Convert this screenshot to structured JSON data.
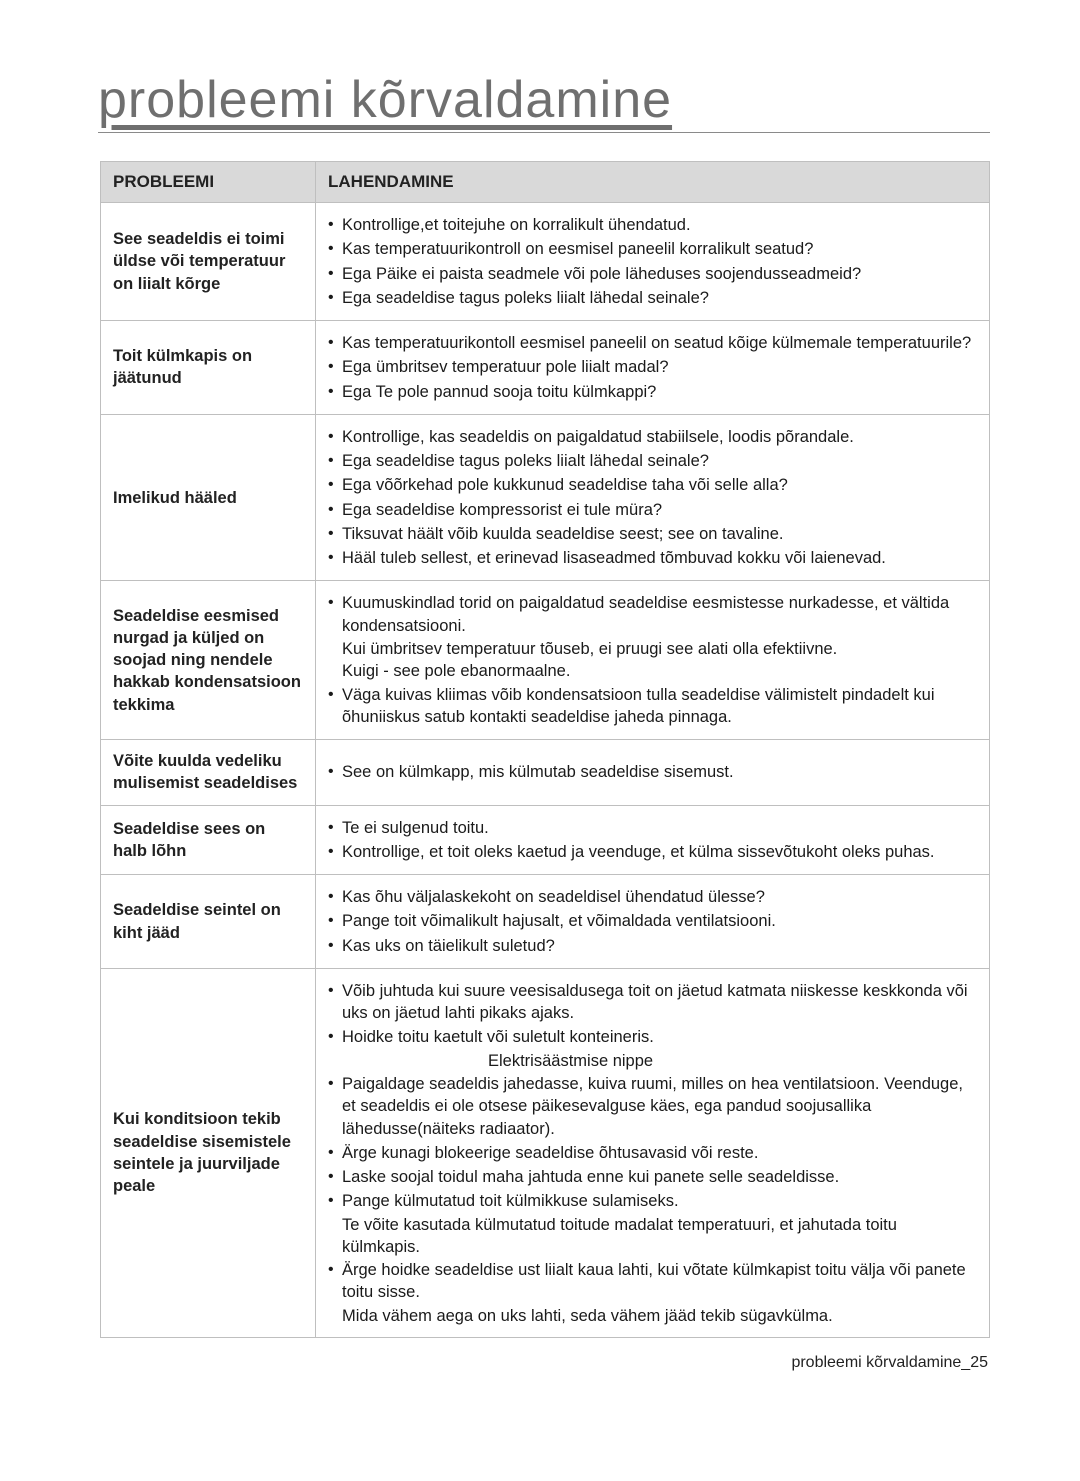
{
  "page": {
    "title": "probleemi kõrvaldamine",
    "footer": "probleemi kõrvaldamine_25",
    "headers": {
      "left": "PROBLEEMI",
      "right": "LAHENDAMINE"
    },
    "rows": [
      {
        "problem": "See seadeldis ei toimi üldse või temperatuur on liialt kõrge",
        "items": [
          {
            "type": "bullet",
            "text": "Kontrollige,et toitejuhe on korralikult ühendatud."
          },
          {
            "type": "bullet",
            "text": "Kas temperatuurikontroll on eesmisel paneelil korralikult seatud?"
          },
          {
            "type": "bullet",
            "text": "Ega Päike ei paista seadmele või pole läheduses soojendusseadmeid?"
          },
          {
            "type": "bullet",
            "text": "Ega seadeldise tagus poleks liialt lähedal seinale?"
          }
        ]
      },
      {
        "problem": "Toit külmkapis on jäätunud",
        "items": [
          {
            "type": "bullet",
            "text": "Kas temperatuurikontoll eesmisel paneelil on seatud kõige külmemale temperatuurile?"
          },
          {
            "type": "bullet",
            "text": "Ega ümbritsev temperatuur pole liialt madal?"
          },
          {
            "type": "bullet",
            "text": "Ega Te pole pannud sooja toitu külmkappi?"
          }
        ]
      },
      {
        "problem": "Imelikud hääled",
        "items": [
          {
            "type": "bullet",
            "text": "Kontrollige, kas seadeldis on paigaldatud stabiilsele, loodis põrandale."
          },
          {
            "type": "bullet",
            "text": "Ega seadeldise tagus poleks liialt lähedal seinale?"
          },
          {
            "type": "bullet",
            "text": "Ega võõrkehad pole kukkunud seadeldise taha või selle alla?"
          },
          {
            "type": "bullet",
            "text": "Ega seadeldise kompressorist ei tule müra?"
          },
          {
            "type": "bullet",
            "text": "Tiksuvat häält võib kuulda seadeldise seest; see on tavaline."
          },
          {
            "type": "bullet",
            "text": "Hääl tuleb sellest, et erinevad lisaseadmed tõmbuvad kokku või laienevad."
          }
        ]
      },
      {
        "problem": "Seadeldise eesmised nurgad ja küljed on soojad ning nendele hakkab kondensatsioon tekkima",
        "items": [
          {
            "type": "bullet",
            "text": "Kuumuskindlad torid on paigaldatud seadeldise eesmistesse nurkadesse, et vältida kondensatsiooni."
          },
          {
            "type": "sub",
            "text": "Kui ümbritsev temperatuur tõuseb, ei pruugi see alati olla efektiivne."
          },
          {
            "type": "sub",
            "text": "Kuigi - see pole ebanormaalne."
          },
          {
            "type": "bullet",
            "text": "Väga kuivas kliimas võib kondensatsioon tulla seadeldise välimistelt pindadelt kui õhuniiskus satub kontakti seadeldise jaheda pinnaga."
          }
        ]
      },
      {
        "problem": "Võite kuulda vedeliku mulisemist seadeldises",
        "items": [
          {
            "type": "bullet",
            "text": "See on külmkapp, mis külmutab seadeldise sisemust."
          }
        ]
      },
      {
        "problem": "Seadeldise sees on halb lõhn",
        "items": [
          {
            "type": "bullet",
            "text": "Te ei sulgenud toitu."
          },
          {
            "type": "bullet",
            "text": "Kontrollige, et toit oleks kaetud ja veenduge, et külma sissevõtukoht oleks puhas."
          }
        ]
      },
      {
        "problem": "Seadeldise seintel on kiht jääd",
        "items": [
          {
            "type": "bullet",
            "text": "Kas õhu väljalaskekoht on seadeldisel ühendatud ülesse?"
          },
          {
            "type": "bullet",
            "text": "Pange toit võimalikult hajusalt, et võimaldada ventilatsiooni."
          },
          {
            "type": "bullet",
            "text": "Kas uks on täielikult suletud?"
          }
        ]
      },
      {
        "problem": "Kui konditsioon tekib seadeldise sisemistele seintele ja juurviljade peale",
        "items": [
          {
            "type": "bullet",
            "text": "Võib juhtuda kui suure veesisaldusega toit on jäetud katmata niiskesse keskkonda või uks on jäetud lahti pikaks ajaks."
          },
          {
            "type": "bullet",
            "text": "Hoidke toitu kaetult või suletult konteineris."
          },
          {
            "type": "center",
            "text": "Elektrisäästmise nippe"
          },
          {
            "type": "bullet",
            "text": "Paigaldage seadeldis jahedasse, kuiva ruumi, milles on hea ventilatsioon. Veenduge, et seadeldis ei ole otsese päikesevalguse käes, ega pandud soojusallika lähedusse(näiteks radiaator)."
          },
          {
            "type": "bullet",
            "text": "Ärge kunagi blokeerige seadeldise õhtusavasid või reste."
          },
          {
            "type": "bullet",
            "text": "Laske soojal toidul maha jahtuda enne kui panete selle seadeldisse."
          },
          {
            "type": "bullet",
            "text": "Pange külmutatud toit külmikkuse sulamiseks."
          },
          {
            "type": "sub",
            "text": "Te võite kasutada külmutatud toitude madalat temperatuuri, et jahutada toitu külmkapis."
          },
          {
            "type": "bullet",
            "text": "Ärge hoidke seadeldise ust liialt kaua lahti, kui võtate külmkapist toitu välja või panete toitu sisse."
          },
          {
            "type": "sub",
            "text": "Mida vähem aega on uks lahti, seda vähem jääd tekib sügavkülma."
          }
        ]
      }
    ]
  }
}
